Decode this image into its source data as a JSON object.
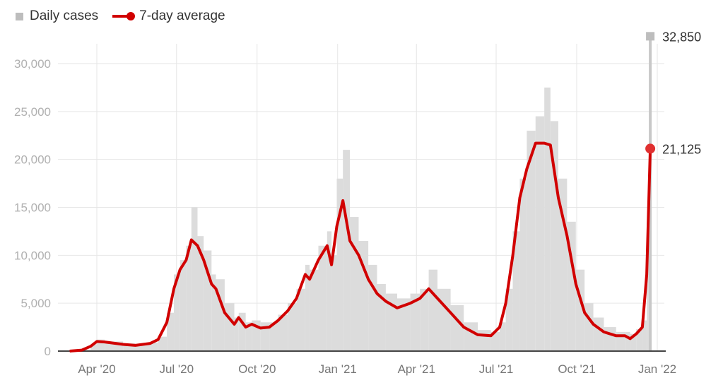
{
  "chart_data": {
    "type": "bar+line",
    "legend": [
      "Daily cases",
      "7-day average"
    ],
    "legend_position": "top-left",
    "colors": {
      "daily_cases": "#dcdcdc",
      "average": "#d10000",
      "grid": "#e6e6e6"
    },
    "ylim": [
      0,
      32850
    ],
    "yticks": [
      0,
      5000,
      10000,
      15000,
      20000,
      25000,
      30000
    ],
    "ytick_labels": [
      "0",
      "5,000",
      "10,000",
      "15,000",
      "20,000",
      "25,000",
      "30,000"
    ],
    "xticks": [
      "2020-04-01",
      "2020-07-01",
      "2020-10-01",
      "2021-01-01",
      "2021-04-01",
      "2021-07-01",
      "2021-10-01",
      "2022-01-01"
    ],
    "xtick_labels": [
      "Apr '20",
      "Jul '20",
      "Oct '20",
      "Jan '21",
      "Apr '21",
      "Jul '21",
      "Oct '21",
      "Jan '22"
    ],
    "grid": true,
    "annotations": {
      "last_daily": "32,850",
      "last_average": "21,125"
    },
    "series": [
      {
        "name": "7-day average",
        "x": [
          "2020-03-01",
          "2020-03-15",
          "2020-03-25",
          "2020-04-01",
          "2020-04-10",
          "2020-05-01",
          "2020-05-15",
          "2020-06-01",
          "2020-06-10",
          "2020-06-20",
          "2020-06-28",
          "2020-07-05",
          "2020-07-12",
          "2020-07-18",
          "2020-07-25",
          "2020-08-01",
          "2020-08-10",
          "2020-08-15",
          "2020-08-25",
          "2020-09-05",
          "2020-09-10",
          "2020-09-18",
          "2020-09-25",
          "2020-10-05",
          "2020-10-15",
          "2020-10-25",
          "2020-11-05",
          "2020-11-15",
          "2020-11-25",
          "2020-11-30",
          "2020-12-10",
          "2020-12-20",
          "2020-12-25",
          "2020-12-31",
          "2021-01-07",
          "2021-01-15",
          "2021-01-25",
          "2021-02-05",
          "2021-02-15",
          "2021-02-25",
          "2021-03-10",
          "2021-03-25",
          "2021-04-05",
          "2021-04-15",
          "2021-04-25",
          "2021-05-10",
          "2021-05-25",
          "2021-06-10",
          "2021-06-25",
          "2021-07-05",
          "2021-07-12",
          "2021-07-20",
          "2021-07-28",
          "2021-08-05",
          "2021-08-15",
          "2021-08-25",
          "2021-09-01",
          "2021-09-10",
          "2021-09-20",
          "2021-09-30",
          "2021-10-10",
          "2021-10-20",
          "2021-11-01",
          "2021-11-15",
          "2021-11-25",
          "2021-12-01",
          "2021-12-08",
          "2021-12-15",
          "2021-12-20",
          "2021-12-24"
        ],
        "values": [
          0,
          100,
          500,
          1000,
          950,
          700,
          600,
          800,
          1200,
          3000,
          6500,
          8500,
          9500,
          11600,
          11000,
          9500,
          7000,
          6500,
          4000,
          2800,
          3500,
          2500,
          2800,
          2400,
          2500,
          3200,
          4200,
          5500,
          8000,
          7500,
          9500,
          11000,
          9000,
          13000,
          15700,
          11500,
          10000,
          7500,
          6000,
          5200,
          4500,
          5000,
          5500,
          6500,
          5500,
          4000,
          2500,
          1700,
          1600,
          2500,
          5000,
          10000,
          16000,
          19000,
          21700,
          21700,
          21500,
          16000,
          12000,
          7000,
          4000,
          2800,
          2000,
          1600,
          1600,
          1300,
          1800,
          2500,
          8000,
          21125
        ]
      },
      {
        "name": "Daily cases",
        "x": [
          "2020-03-01",
          "2020-03-15",
          "2020-03-25",
          "2020-04-01",
          "2020-04-10",
          "2020-05-01",
          "2020-05-15",
          "2020-06-01",
          "2020-06-10",
          "2020-06-20",
          "2020-06-28",
          "2020-07-05",
          "2020-07-12",
          "2020-07-18",
          "2020-07-25",
          "2020-08-01",
          "2020-08-10",
          "2020-08-15",
          "2020-08-25",
          "2020-09-05",
          "2020-09-10",
          "2020-09-18",
          "2020-09-25",
          "2020-10-05",
          "2020-10-15",
          "2020-10-25",
          "2020-11-05",
          "2020-11-15",
          "2020-11-25",
          "2020-11-30",
          "2020-12-10",
          "2020-12-20",
          "2020-12-25",
          "2020-12-31",
          "2021-01-07",
          "2021-01-15",
          "2021-01-25",
          "2021-02-05",
          "2021-02-15",
          "2021-02-25",
          "2021-03-10",
          "2021-03-25",
          "2021-04-05",
          "2021-04-15",
          "2021-04-25",
          "2021-05-10",
          "2021-05-25",
          "2021-06-10",
          "2021-06-25",
          "2021-07-05",
          "2021-07-12",
          "2021-07-20",
          "2021-07-28",
          "2021-08-05",
          "2021-08-15",
          "2021-08-25",
          "2021-09-01",
          "2021-09-10",
          "2021-09-20",
          "2021-09-30",
          "2021-10-10",
          "2021-10-20",
          "2021-11-01",
          "2021-11-15",
          "2021-11-25",
          "2021-12-01",
          "2021-12-08",
          "2021-12-15",
          "2021-12-20",
          "2021-12-24"
        ],
        "values": [
          0,
          150,
          700,
          1200,
          1000,
          800,
          700,
          900,
          1500,
          4000,
          8000,
          9500,
          11000,
          15000,
          12000,
          10500,
          8000,
          7500,
          5000,
          3500,
          4000,
          3000,
          3200,
          3000,
          3000,
          3800,
          5000,
          6500,
          9000,
          8500,
          11000,
          12500,
          10000,
          18000,
          21000,
          14000,
          11500,
          9000,
          7000,
          6000,
          5500,
          6000,
          6500,
          8500,
          6500,
          4800,
          3000,
          2200,
          2000,
          3000,
          6500,
          12500,
          18000,
          23000,
          24500,
          27500,
          24000,
          18000,
          13500,
          8500,
          5000,
          3500,
          2500,
          2000,
          2000,
          1800,
          2300,
          3200,
          12000,
          32850
        ]
      }
    ]
  }
}
